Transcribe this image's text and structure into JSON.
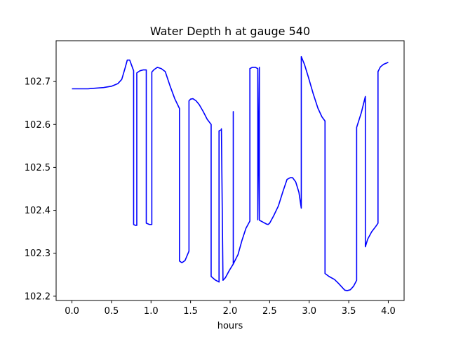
{
  "chart_data": {
    "type": "line",
    "title": "Water Depth h at gauge 540",
    "xlabel": "hours",
    "ylabel": "",
    "xlim": [
      -0.2,
      4.2
    ],
    "ylim": [
      102.19,
      102.795
    ],
    "xticks": [
      0.0,
      0.5,
      1.0,
      1.5,
      2.0,
      2.5,
      3.0,
      3.5,
      4.0
    ],
    "xtick_labels": [
      "0.0",
      "0.5",
      "1.0",
      "1.5",
      "2.0",
      "2.5",
      "3.0",
      "3.5",
      "4.0"
    ],
    "yticks": [
      102.2,
      102.3,
      102.4,
      102.5,
      102.6,
      102.7
    ],
    "ytick_labels": [
      "102.2",
      "102.3",
      "102.4",
      "102.5",
      "102.6",
      "102.7"
    ],
    "grid": false,
    "series": [
      {
        "color": "#0000ff",
        "x": [
          0.0,
          0.2,
          0.4,
          0.5,
          0.58,
          0.63,
          0.67,
          0.7,
          0.73,
          0.76,
          0.78,
          0.78,
          0.8,
          0.82,
          0.82,
          0.86,
          0.9,
          0.94,
          0.94,
          0.98,
          1.01,
          1.01,
          1.04,
          1.08,
          1.13,
          1.18,
          1.24,
          1.3,
          1.36,
          1.36,
          1.39,
          1.43,
          1.48,
          1.48,
          1.5,
          1.53,
          1.57,
          1.61,
          1.66,
          1.71,
          1.76,
          1.76,
          1.81,
          1.86,
          1.86,
          1.89,
          1.89,
          1.91,
          1.94,
          1.99,
          2.04,
          2.04,
          2.04,
          2.1,
          2.15,
          2.2,
          2.25,
          2.25,
          2.28,
          2.32,
          2.35,
          2.35,
          2.35,
          2.37,
          2.37,
          2.42,
          2.46,
          2.48,
          2.5,
          2.55,
          2.61,
          2.67,
          2.72,
          2.76,
          2.79,
          2.83,
          2.87,
          2.9,
          2.9,
          2.94,
          2.99,
          3.05,
          3.11,
          3.16,
          3.2,
          3.2,
          3.25,
          3.32,
          3.37,
          3.42,
          3.45,
          3.48,
          3.52,
          3.56,
          3.6,
          3.6,
          3.66,
          3.71,
          3.71,
          3.74,
          3.79,
          3.84,
          3.87,
          3.87,
          3.9,
          3.94,
          3.98,
          4.0
        ]
      }
    ]
  }
}
